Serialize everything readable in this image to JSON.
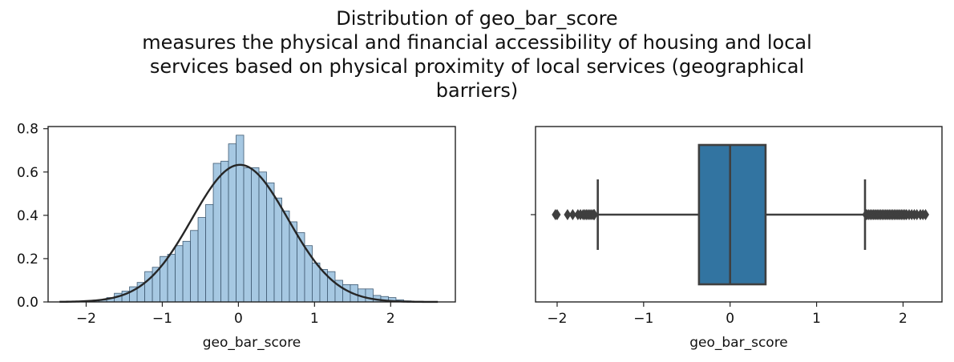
{
  "figure": {
    "title_lines": [
      "Distribution of geo_bar_score",
      "measures the physical and financial accessibility of housing and local",
      "services based on physical proximity of local services (geographical",
      "barriers)"
    ]
  },
  "chart_data": [
    {
      "type": "histogram",
      "xlabel": "geo_bar_score",
      "ylabel": "",
      "xlim": [
        -2.5,
        2.85
      ],
      "ylim": [
        0,
        0.81
      ],
      "xticks": [
        -2,
        -1,
        0,
        1,
        2
      ],
      "xtick_labels": [
        "−2",
        "−1",
        "0",
        "1",
        "2"
      ],
      "yticks": [
        0.0,
        0.2,
        0.4,
        0.6,
        0.8
      ],
      "ytick_labels": [
        "0.0",
        "0.2",
        "0.4",
        "0.6",
        "0.8"
      ],
      "bar_color": "#a6c8e2",
      "bar_edge_color": "#3f5a72",
      "bins": [
        {
          "x0": -2.03,
          "x1": -1.93,
          "h": 0.003
        },
        {
          "x0": -1.93,
          "x1": -1.83,
          "h": 0.005
        },
        {
          "x0": -1.83,
          "x1": -1.73,
          "h": 0.01
        },
        {
          "x0": -1.73,
          "x1": -1.63,
          "h": 0.02
        },
        {
          "x0": -1.63,
          "x1": -1.53,
          "h": 0.04
        },
        {
          "x0": -1.53,
          "x1": -1.43,
          "h": 0.05
        },
        {
          "x0": -1.43,
          "x1": -1.33,
          "h": 0.07
        },
        {
          "x0": -1.33,
          "x1": -1.23,
          "h": 0.09
        },
        {
          "x0": -1.23,
          "x1": -1.13,
          "h": 0.14
        },
        {
          "x0": -1.13,
          "x1": -1.03,
          "h": 0.16
        },
        {
          "x0": -1.03,
          "x1": -0.93,
          "h": 0.21
        },
        {
          "x0": -0.93,
          "x1": -0.83,
          "h": 0.22
        },
        {
          "x0": -0.83,
          "x1": -0.73,
          "h": 0.26
        },
        {
          "x0": -0.73,
          "x1": -0.63,
          "h": 0.28
        },
        {
          "x0": -0.63,
          "x1": -0.53,
          "h": 0.33
        },
        {
          "x0": -0.53,
          "x1": -0.43,
          "h": 0.39
        },
        {
          "x0": -0.43,
          "x1": -0.33,
          "h": 0.45
        },
        {
          "x0": -0.33,
          "x1": -0.23,
          "h": 0.64
        },
        {
          "x0": -0.23,
          "x1": -0.13,
          "h": 0.65
        },
        {
          "x0": -0.13,
          "x1": -0.03,
          "h": 0.73
        },
        {
          "x0": -0.03,
          "x1": 0.07,
          "h": 0.77
        },
        {
          "x0": 0.07,
          "x1": 0.17,
          "h": 0.62
        },
        {
          "x0": 0.17,
          "x1": 0.27,
          "h": 0.62
        },
        {
          "x0": 0.27,
          "x1": 0.37,
          "h": 0.6
        },
        {
          "x0": 0.37,
          "x1": 0.47,
          "h": 0.55
        },
        {
          "x0": 0.47,
          "x1": 0.57,
          "h": 0.48
        },
        {
          "x0": 0.57,
          "x1": 0.67,
          "h": 0.42
        },
        {
          "x0": 0.67,
          "x1": 0.77,
          "h": 0.37
        },
        {
          "x0": 0.77,
          "x1": 0.87,
          "h": 0.32
        },
        {
          "x0": 0.87,
          "x1": 0.97,
          "h": 0.26
        },
        {
          "x0": 0.97,
          "x1": 1.07,
          "h": 0.18
        },
        {
          "x0": 1.07,
          "x1": 1.17,
          "h": 0.15
        },
        {
          "x0": 1.17,
          "x1": 1.27,
          "h": 0.14
        },
        {
          "x0": 1.27,
          "x1": 1.37,
          "h": 0.1
        },
        {
          "x0": 1.37,
          "x1": 1.47,
          "h": 0.08
        },
        {
          "x0": 1.47,
          "x1": 1.57,
          "h": 0.08
        },
        {
          "x0": 1.57,
          "x1": 1.67,
          "h": 0.06
        },
        {
          "x0": 1.67,
          "x1": 1.77,
          "h": 0.06
        },
        {
          "x0": 1.77,
          "x1": 1.87,
          "h": 0.03
        },
        {
          "x0": 1.87,
          "x1": 1.97,
          "h": 0.025
        },
        {
          "x0": 1.97,
          "x1": 2.07,
          "h": 0.02
        },
        {
          "x0": 2.07,
          "x1": 2.17,
          "h": 0.01
        },
        {
          "x0": 2.17,
          "x1": 2.27,
          "h": 0.005
        }
      ],
      "fit_curve": {
        "type": "normal_pdf",
        "mean": 0.02,
        "std": 0.63,
        "x_range": [
          -2.35,
          2.62
        ],
        "color": "#262626"
      }
    },
    {
      "type": "boxplot",
      "xlabel": "geo_bar_score",
      "xlim": [
        -2.25,
        2.45
      ],
      "xticks": [
        -2,
        -1,
        0,
        1,
        2
      ],
      "xtick_labels": [
        "−2",
        "−1",
        "0",
        "1",
        "2"
      ],
      "box_color": "#3274a1",
      "line_color": "#3f3f3f",
      "q1": -0.36,
      "median": 0.0,
      "q3": 0.41,
      "whisker_low": -1.53,
      "whisker_high": 1.56,
      "outliers": [
        -2.02,
        -2.0,
        -1.88,
        -1.82,
        -1.76,
        -1.73,
        -1.7,
        -1.68,
        -1.66,
        -1.64,
        -1.62,
        -1.6,
        -1.58,
        -1.57,
        1.57,
        1.58,
        1.6,
        1.62,
        1.64,
        1.66,
        1.68,
        1.7,
        1.72,
        1.74,
        1.76,
        1.78,
        1.8,
        1.82,
        1.84,
        1.86,
        1.88,
        1.9,
        1.92,
        1.94,
        1.96,
        1.98,
        2.0,
        2.02,
        2.04,
        2.07,
        2.1,
        2.13,
        2.16,
        2.2,
        2.23,
        2.26
      ]
    }
  ]
}
